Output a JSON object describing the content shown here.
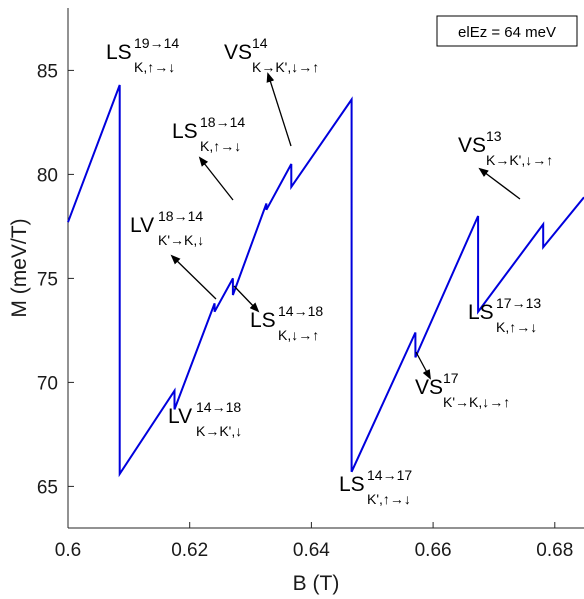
{
  "chart_data": {
    "type": "line",
    "xlabel": "B (T)",
    "ylabel": "M (meV/T)",
    "xlim": [
      0.6,
      0.6848
    ],
    "ylim": [
      63.0,
      88.0
    ],
    "x_ticks": [
      0.6,
      0.62,
      0.64,
      0.66,
      0.68
    ],
    "x_tick_labels": [
      "0.6",
      "0.62",
      "0.64",
      "0.66",
      "0.68"
    ],
    "y_ticks": [
      65,
      70,
      75,
      80,
      85
    ],
    "y_tick_labels": [
      "65",
      "70",
      "75",
      "80",
      "85"
    ],
    "grid": false,
    "legend_box": "elEz = 64 meV",
    "series": [
      {
        "color": "#0000dd",
        "x": [
          0.6,
          0.6085,
          0.6085,
          0.6175,
          0.6175,
          0.6241,
          0.6241,
          0.6271,
          0.6271,
          0.6326,
          0.6326,
          0.6367,
          0.6367,
          0.6466,
          0.6466,
          0.6571,
          0.6571,
          0.6674,
          0.6674,
          0.6781,
          0.6781,
          0.6848
        ],
        "y": [
          77.7,
          84.3,
          65.6,
          69.6,
          68.7,
          73.8,
          73.4,
          75.0,
          74.2,
          78.6,
          78.3,
          80.5,
          79.4,
          83.6,
          65.7,
          72.4,
          71.2,
          78.0,
          73.4,
          77.6,
          76.5,
          78.9
        ]
      }
    ],
    "annotations": [
      {
        "main": "LS",
        "sup": "19→14",
        "sub": "K,↑→↓"
      },
      {
        "main": "VS",
        "sup": "14",
        "sub": "K→K',↓→↑"
      },
      {
        "main": "LS",
        "sup": "18→14",
        "sub": "K,↑→↓"
      },
      {
        "main": "LV",
        "sup": "18→14",
        "sub": "K'→K,↓"
      },
      {
        "main": "LS",
        "sup": "14→18",
        "sub": "K,↓→↑"
      },
      {
        "main": "LV",
        "sup": "14→18",
        "sub": "K→K',↓"
      },
      {
        "main": "LS",
        "sup": "14→17",
        "sub": "K',↑→↓"
      },
      {
        "main": "VS",
        "sup": "17",
        "sub": "K'→K,↓→↑"
      },
      {
        "main": "VS",
        "sup": "13",
        "sub": "K→K',↓→↑"
      },
      {
        "main": "LS",
        "sup": "17→13",
        "sub": "K,↑→↓"
      }
    ]
  }
}
